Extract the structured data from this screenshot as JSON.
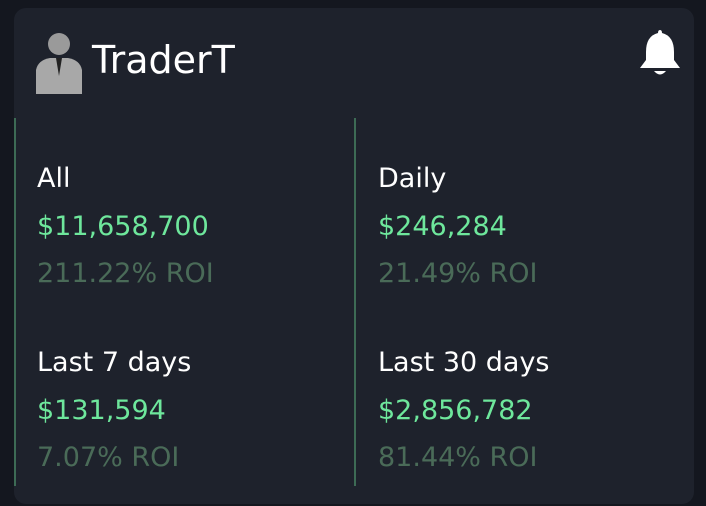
{
  "header": {
    "username": "TraderT"
  },
  "stats": [
    {
      "label": "All",
      "amount": "$11,658,700",
      "roi": "211.22% ROI"
    },
    {
      "label": "Daily",
      "amount": "$246,284",
      "roi": "21.49% ROI"
    },
    {
      "label": "Last 7 days",
      "amount": "$131,594",
      "roi": "7.07% ROI"
    },
    {
      "label": "Last 30 days",
      "amount": "$2,856,782",
      "roi": "81.44% ROI"
    }
  ]
}
